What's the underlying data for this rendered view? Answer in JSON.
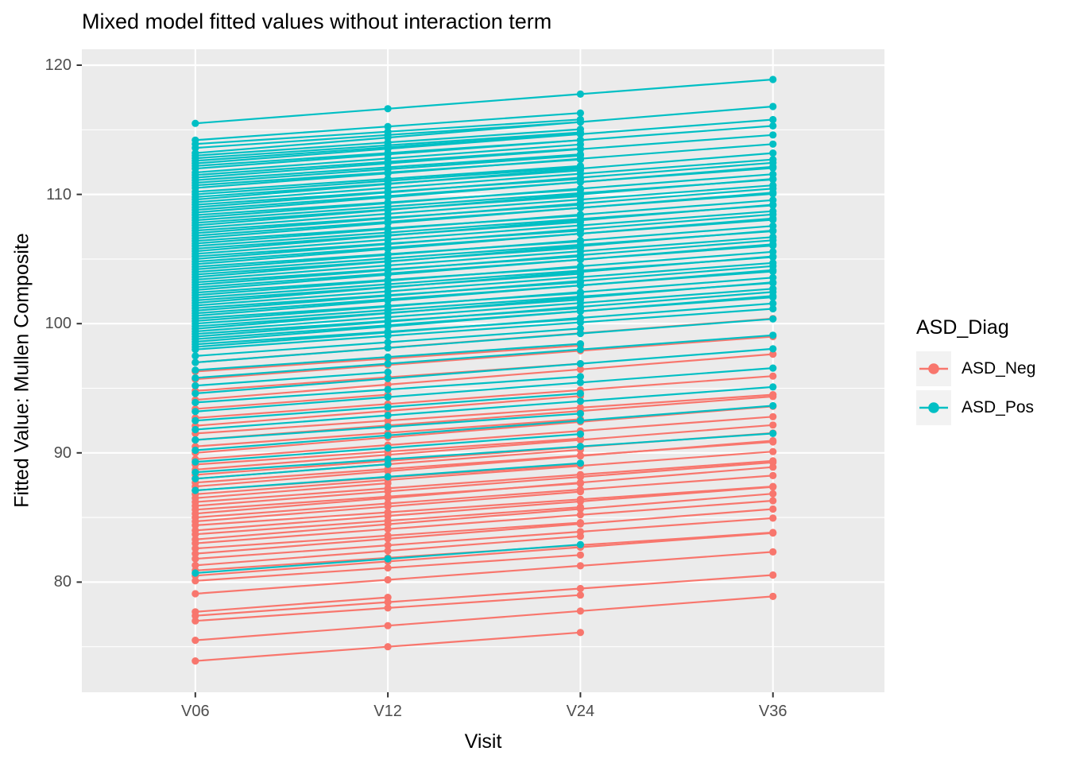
{
  "title": "Mixed model fitted values without interaction term",
  "colors": {
    "asd_neg": "#F8766D",
    "asd_pos": "#00BFC4",
    "panel_bg": "#EBEBEB",
    "grid": "#FFFFFF",
    "tick_text": "#4D4D4D",
    "tick_mark": "#333333",
    "legend_key_bg": "#F2F2F2"
  },
  "legend": {
    "title": "ASD_Diag",
    "entries": [
      {
        "label": "ASD_Neg",
        "color": "#F8766D"
      },
      {
        "label": "ASD_Pos",
        "color": "#00BFC4"
      }
    ]
  },
  "chart_data": {
    "type": "line",
    "title": "Mixed model fitted values without interaction term",
    "xlabel": "Visit",
    "ylabel": "Fitted Value: Mullen Composite",
    "x_categories": [
      "V06",
      "V12",
      "V24",
      "V36"
    ],
    "y_major_ticks": [
      80,
      90,
      100,
      110,
      120
    ],
    "y_minor_gridlines": [
      75,
      85,
      95,
      105,
      115
    ],
    "ylim": [
      71.6,
      121.2
    ],
    "grid": true,
    "legend_position": "right",
    "groups": [
      {
        "name": "ASD_Neg",
        "color": "#F8766D",
        "n_subjects": 46
      },
      {
        "name": "ASD_Pos",
        "color": "#00BFC4",
        "n_subjects": 97
      }
    ],
    "subject_model": "fitted value at visit index i (0..3) = intercept + slope*i; subjects with n_visits<4 have no fitted values after their last observed visit",
    "subjects_format": [
      "group_index",
      "intercept_at_V06",
      "slope_per_visit_step",
      "n_visits"
    ],
    "subjects": [
      [
        0,
        73.9,
        1.1,
        3
      ],
      [
        0,
        75.5,
        1.13,
        4
      ],
      [
        0,
        77.0,
        1.0,
        3
      ],
      [
        0,
        77.4,
        1.05,
        4
      ],
      [
        0,
        77.7,
        1.12,
        2
      ],
      [
        0,
        79.1,
        1.08,
        4
      ],
      [
        0,
        80.1,
        1.0,
        3
      ],
      [
        0,
        80.5,
        1.1,
        4
      ],
      [
        0,
        80.9,
        0.98,
        4
      ],
      [
        0,
        81.3,
        1.12,
        3
      ],
      [
        0,
        81.8,
        1.05,
        4
      ],
      [
        0,
        82.2,
        1.15,
        4
      ],
      [
        0,
        82.6,
        1.0,
        3
      ],
      [
        0,
        83.0,
        1.1,
        4
      ],
      [
        0,
        83.3,
        1.18,
        4
      ],
      [
        0,
        83.7,
        1.05,
        3
      ],
      [
        0,
        84.0,
        1.12,
        4
      ],
      [
        0,
        84.4,
        1.0,
        4
      ],
      [
        0,
        84.7,
        1.15,
        3
      ],
      [
        0,
        85.0,
        1.08,
        4
      ],
      [
        0,
        85.3,
        1.2,
        4
      ],
      [
        0,
        85.6,
        1.02,
        3
      ],
      [
        0,
        85.9,
        1.12,
        4
      ],
      [
        0,
        86.2,
        1.06,
        4
      ],
      [
        0,
        86.5,
        1.15,
        2
      ],
      [
        0,
        86.8,
        1.1,
        4
      ],
      [
        0,
        87.1,
        1.0,
        3
      ],
      [
        0,
        87.4,
        1.18,
        4
      ],
      [
        0,
        87.7,
        1.05,
        4
      ],
      [
        0,
        88.0,
        1.12,
        3
      ],
      [
        0,
        88.3,
        1.08,
        4
      ],
      [
        0,
        88.7,
        1.15,
        4
      ],
      [
        0,
        89.1,
        1.0,
        3
      ],
      [
        0,
        89.5,
        1.1,
        4
      ],
      [
        0,
        90.0,
        1.2,
        4
      ],
      [
        0,
        90.5,
        1.05,
        3
      ],
      [
        0,
        91.0,
        1.12,
        4
      ],
      [
        0,
        91.5,
        1.0,
        4
      ],
      [
        0,
        92.1,
        1.15,
        3
      ],
      [
        0,
        92.7,
        1.08,
        4
      ],
      [
        0,
        93.4,
        1.1,
        2
      ],
      [
        0,
        94.1,
        1.18,
        4
      ],
      [
        0,
        94.8,
        1.05,
        3
      ],
      [
        0,
        95.7,
        1.1,
        4
      ],
      [
        0,
        96.3,
        1.0,
        3
      ],
      [
        0,
        97.0,
        1.13,
        4
      ],
      [
        1,
        80.7,
        1.1,
        3
      ],
      [
        1,
        87.1,
        1.05,
        3
      ],
      [
        1,
        88.0,
        1.12,
        2
      ],
      [
        1,
        88.5,
        1.0,
        4
      ],
      [
        1,
        89.3,
        1.08,
        3
      ],
      [
        1,
        90.2,
        1.15,
        4
      ],
      [
        1,
        91.0,
        1.02,
        3
      ],
      [
        1,
        91.8,
        1.1,
        4
      ],
      [
        1,
        92.5,
        1.05,
        3
      ],
      [
        1,
        93.2,
        1.12,
        4
      ],
      [
        1,
        93.9,
        1.0,
        3
      ],
      [
        1,
        94.6,
        1.15,
        4
      ],
      [
        1,
        95.2,
        1.05,
        2
      ],
      [
        1,
        95.8,
        1.1,
        4
      ],
      [
        1,
        96.4,
        1.02,
        3
      ],
      [
        1,
        97.0,
        1.12,
        4
      ],
      [
        1,
        97.5,
        1.06,
        3
      ],
      [
        1,
        98.0,
        1.05,
        4
      ],
      [
        1,
        98.2,
        1.12,
        4
      ],
      [
        1,
        98.4,
        0.98,
        3
      ],
      [
        1,
        98.6,
        1.18,
        4
      ],
      [
        1,
        98.8,
        1.08,
        4
      ],
      [
        1,
        99.0,
        1.15,
        4
      ],
      [
        1,
        99.2,
        1.0,
        3
      ],
      [
        1,
        99.4,
        1.1,
        4
      ],
      [
        1,
        99.6,
        1.2,
        4
      ],
      [
        1,
        99.8,
        1.03,
        3
      ],
      [
        1,
        100.0,
        1.05,
        4
      ],
      [
        1,
        100.2,
        1.12,
        4
      ],
      [
        1,
        100.4,
        0.98,
        3
      ],
      [
        1,
        100.6,
        1.18,
        4
      ],
      [
        1,
        100.8,
        1.08,
        4
      ],
      [
        1,
        101.0,
        1.15,
        4
      ],
      [
        1,
        101.2,
        1.0,
        3
      ],
      [
        1,
        101.4,
        1.1,
        4
      ],
      [
        1,
        101.6,
        1.2,
        4
      ],
      [
        1,
        101.8,
        1.03,
        3
      ],
      [
        1,
        102.0,
        1.05,
        4
      ],
      [
        1,
        102.2,
        1.12,
        4
      ],
      [
        1,
        102.4,
        0.98,
        3
      ],
      [
        1,
        102.6,
        1.18,
        4
      ],
      [
        1,
        102.8,
        1.08,
        4
      ],
      [
        1,
        103.0,
        1.15,
        4
      ],
      [
        1,
        103.2,
        1.0,
        3
      ],
      [
        1,
        103.4,
        1.1,
        4
      ],
      [
        1,
        103.6,
        1.2,
        4
      ],
      [
        1,
        103.8,
        1.03,
        3
      ],
      [
        1,
        104.0,
        1.05,
        4
      ],
      [
        1,
        104.2,
        1.12,
        4
      ],
      [
        1,
        104.4,
        0.98,
        3
      ],
      [
        1,
        104.6,
        1.18,
        4
      ],
      [
        1,
        104.8,
        1.08,
        4
      ],
      [
        1,
        105.0,
        1.15,
        4
      ],
      [
        1,
        105.2,
        1.0,
        3
      ],
      [
        1,
        105.4,
        1.1,
        4
      ],
      [
        1,
        105.6,
        1.2,
        4
      ],
      [
        1,
        105.8,
        1.03,
        3
      ],
      [
        1,
        106.0,
        1.05,
        4
      ],
      [
        1,
        106.2,
        1.12,
        4
      ],
      [
        1,
        106.4,
        0.98,
        3
      ],
      [
        1,
        106.6,
        1.18,
        4
      ],
      [
        1,
        106.8,
        1.08,
        4
      ],
      [
        1,
        107.0,
        1.15,
        4
      ],
      [
        1,
        107.2,
        1.0,
        3
      ],
      [
        1,
        107.4,
        1.1,
        4
      ],
      [
        1,
        107.6,
        1.2,
        4
      ],
      [
        1,
        107.8,
        1.03,
        3
      ],
      [
        1,
        108.0,
        1.05,
        4
      ],
      [
        1,
        108.2,
        1.12,
        4
      ],
      [
        1,
        108.4,
        0.98,
        3
      ],
      [
        1,
        108.6,
        1.18,
        4
      ],
      [
        1,
        108.8,
        1.08,
        4
      ],
      [
        1,
        109.0,
        1.15,
        4
      ],
      [
        1,
        109.2,
        1.0,
        3
      ],
      [
        1,
        109.4,
        1.1,
        4
      ],
      [
        1,
        109.6,
        1.2,
        4
      ],
      [
        1,
        109.8,
        1.03,
        3
      ],
      [
        1,
        110.0,
        1.05,
        3
      ],
      [
        1,
        110.2,
        1.0,
        3
      ],
      [
        1,
        110.5,
        1.13,
        4
      ],
      [
        1,
        110.7,
        1.0,
        3
      ],
      [
        1,
        110.9,
        1.05,
        3
      ],
      [
        1,
        111.1,
        1.0,
        3
      ],
      [
        1,
        111.3,
        1.1,
        4
      ],
      [
        1,
        111.5,
        1.02,
        3
      ],
      [
        1,
        111.7,
        1.08,
        3
      ],
      [
        1,
        112.0,
        1.1,
        4
      ],
      [
        1,
        112.2,
        1.0,
        3
      ],
      [
        1,
        112.4,
        1.13,
        4
      ],
      [
        1,
        112.6,
        1.05,
        3
      ],
      [
        1,
        112.8,
        1.0,
        3
      ],
      [
        1,
        113.0,
        1.02,
        3
      ],
      [
        1,
        113.2,
        1.2,
        4
      ],
      [
        1,
        113.6,
        1.0,
        3
      ],
      [
        1,
        113.9,
        0.95,
        3
      ],
      [
        1,
        114.2,
        1.05,
        3
      ],
      [
        1,
        115.5,
        1.13,
        4
      ]
    ]
  }
}
